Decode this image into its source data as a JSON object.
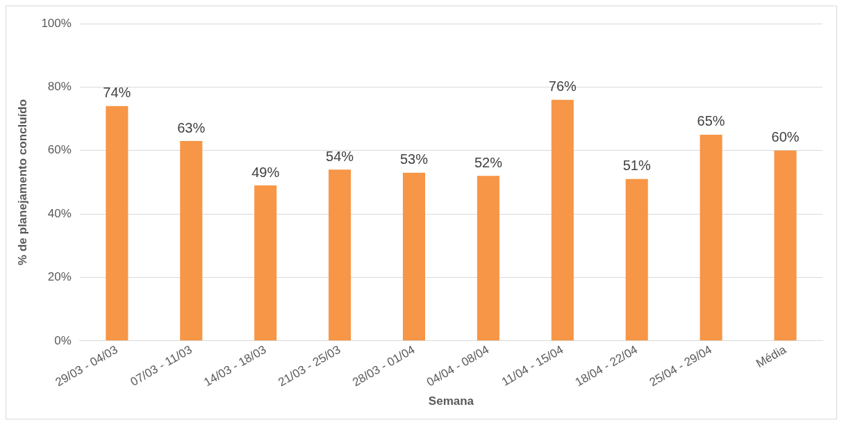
{
  "chart_data": {
    "type": "bar",
    "xlabel": "Semana",
    "ylabel": "% de planejamento concluído",
    "categories": [
      "29/03 - 04/03",
      "07/03 - 11/03",
      "14/03 - 18/03",
      "21/03 - 25/03",
      "28/03 - 01/04",
      "04/04 - 08/04",
      "11/04 - 15/04",
      "18/04 - 22/04",
      "25/04 - 29/04",
      "Média"
    ],
    "values": [
      74,
      63,
      49,
      54,
      53,
      52,
      76,
      51,
      65,
      60
    ],
    "value_labels": [
      "74%",
      "63%",
      "49%",
      "54%",
      "53%",
      "52%",
      "76%",
      "51%",
      "65%",
      "60%"
    ],
    "color": "#f79646",
    "ylim": [
      0,
      100
    ],
    "yticks": [
      {
        "value": 0,
        "label": "0%"
      },
      {
        "value": 20,
        "label": "20%"
      },
      {
        "value": 40,
        "label": "40%"
      },
      {
        "value": 60,
        "label": "60%"
      },
      {
        "value": 80,
        "label": "80%"
      },
      {
        "value": 100,
        "label": "100%"
      }
    ],
    "grid": "y",
    "legend": false
  }
}
